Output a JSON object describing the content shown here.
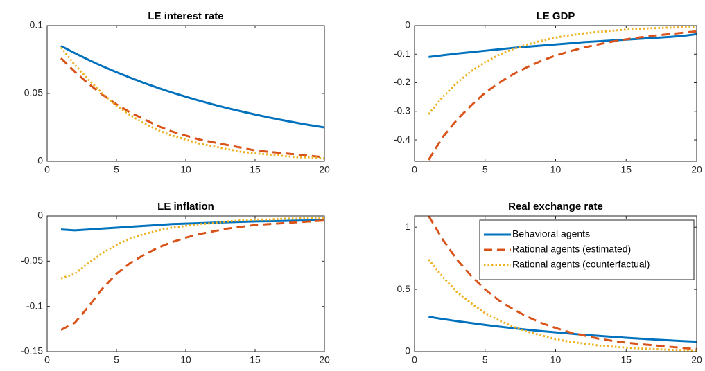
{
  "chart_data": [
    {
      "type": "line",
      "title": "LE interest rate",
      "x": [
        1,
        2,
        3,
        4,
        5,
        6,
        7,
        8,
        9,
        10,
        11,
        12,
        13,
        14,
        15,
        16,
        17,
        18,
        19,
        20
      ],
      "xlim": [
        0,
        20
      ],
      "xticks": [
        0,
        5,
        10,
        15,
        20
      ],
      "ylim": [
        0,
        0.1
      ],
      "yticks": [
        0,
        0.05,
        0.1
      ],
      "series": [
        {
          "color": "#0072BD",
          "style": "solid",
          "values": [
            0.085,
            0.0797,
            0.0747,
            0.07,
            0.0657,
            0.0616,
            0.0577,
            0.0541,
            0.0507,
            0.0476,
            0.0446,
            0.0418,
            0.0392,
            0.0368,
            0.0345,
            0.0323,
            0.0303,
            0.0284,
            0.0266,
            0.025
          ]
        },
        {
          "color": "#D95319",
          "style": "dashed",
          "values": [
            0.076,
            0.066,
            0.057,
            0.049,
            0.042,
            0.036,
            0.031,
            0.026,
            0.022,
            0.019,
            0.016,
            0.014,
            0.012,
            0.01,
            0.008,
            0.007,
            0.006,
            0.005,
            0.004,
            0.003
          ]
        },
        {
          "color": "#EDB120",
          "style": "dotted",
          "values": [
            0.084,
            0.071,
            0.06,
            0.05,
            0.041,
            0.034,
            0.028,
            0.023,
            0.019,
            0.016,
            0.013,
            0.011,
            0.009,
            0.007,
            0.006,
            0.005,
            0.004,
            0.003,
            0.003,
            0.002
          ]
        }
      ]
    },
    {
      "type": "line",
      "title": "LE GDP",
      "x": [
        1,
        2,
        3,
        4,
        5,
        6,
        7,
        8,
        9,
        10,
        11,
        12,
        13,
        14,
        15,
        16,
        17,
        18,
        19,
        20
      ],
      "xlim": [
        0,
        20
      ],
      "xticks": [
        0,
        5,
        10,
        15,
        20
      ],
      "ylim": [
        -0.475,
        0
      ],
      "yticks": [
        -0.4,
        -0.3,
        -0.2,
        -0.1,
        0
      ],
      "series": [
        {
          "color": "#0072BD",
          "style": "solid",
          "values": [
            -0.11,
            -0.104,
            -0.098,
            -0.093,
            -0.088,
            -0.083,
            -0.078,
            -0.074,
            -0.07,
            -0.066,
            -0.062,
            -0.058,
            -0.055,
            -0.052,
            -0.049,
            -0.046,
            -0.043,
            -0.04,
            -0.036,
            -0.03
          ]
        },
        {
          "color": "#D95319",
          "style": "dashed",
          "values": [
            -0.47,
            -0.39,
            -0.33,
            -0.28,
            -0.235,
            -0.2,
            -0.17,
            -0.145,
            -0.123,
            -0.105,
            -0.09,
            -0.077,
            -0.066,
            -0.056,
            -0.048,
            -0.041,
            -0.035,
            -0.03,
            -0.025,
            -0.02
          ]
        },
        {
          "color": "#EDB120",
          "style": "dotted",
          "values": [
            -0.31,
            -0.25,
            -0.2,
            -0.16,
            -0.128,
            -0.102,
            -0.082,
            -0.066,
            -0.053,
            -0.042,
            -0.034,
            -0.027,
            -0.022,
            -0.018,
            -0.014,
            -0.011,
            -0.009,
            -0.007,
            -0.006,
            -0.005
          ]
        }
      ]
    },
    {
      "type": "line",
      "title": "LE inflation",
      "x": [
        1,
        2,
        3,
        4,
        5,
        6,
        7,
        8,
        9,
        10,
        11,
        12,
        13,
        14,
        15,
        16,
        17,
        18,
        19,
        20
      ],
      "xlim": [
        0,
        20
      ],
      "xticks": [
        0,
        5,
        10,
        15,
        20
      ],
      "ylim": [
        -0.15,
        0
      ],
      "yticks": [
        -0.15,
        -0.1,
        -0.05,
        0
      ],
      "series": [
        {
          "color": "#0072BD",
          "style": "solid",
          "values": [
            -0.015,
            -0.016,
            -0.015,
            -0.014,
            -0.013,
            -0.012,
            -0.011,
            -0.01,
            -0.009,
            -0.0085,
            -0.008,
            -0.0075,
            -0.007,
            -0.0065,
            -0.006,
            -0.0058,
            -0.0055,
            -0.0052,
            -0.005,
            -0.005
          ]
        },
        {
          "color": "#D95319",
          "style": "dashed",
          "values": [
            -0.126,
            -0.118,
            -0.1,
            -0.08,
            -0.064,
            -0.052,
            -0.043,
            -0.035,
            -0.029,
            -0.024,
            -0.02,
            -0.017,
            -0.014,
            -0.012,
            -0.01,
            -0.009,
            -0.008,
            -0.007,
            -0.006,
            -0.005
          ]
        },
        {
          "color": "#EDB120",
          "style": "dotted",
          "values": [
            -0.069,
            -0.064,
            -0.052,
            -0.041,
            -0.032,
            -0.025,
            -0.02,
            -0.016,
            -0.013,
            -0.011,
            -0.009,
            -0.008,
            -0.006,
            -0.005,
            -0.004,
            -0.004,
            -0.003,
            -0.003,
            -0.002,
            -0.002
          ]
        }
      ]
    },
    {
      "type": "line",
      "title": "Real exchange rate",
      "x": [
        1,
        2,
        3,
        4,
        5,
        6,
        7,
        8,
        9,
        10,
        11,
        12,
        13,
        14,
        15,
        16,
        17,
        18,
        19,
        20
      ],
      "xlim": [
        0,
        20
      ],
      "xticks": [
        0,
        5,
        10,
        15,
        20
      ],
      "ylim": [
        0,
        1.09
      ],
      "yticks": [
        0,
        0.5,
        1
      ],
      "legend": "upper right",
      "series": [
        {
          "name": "Behavioral agents",
          "color": "#0072BD",
          "style": "solid",
          "values": [
            0.28,
            0.262,
            0.245,
            0.23,
            0.215,
            0.201,
            0.188,
            0.176,
            0.165,
            0.155,
            0.145,
            0.135,
            0.127,
            0.119,
            0.111,
            0.104,
            0.097,
            0.091,
            0.085,
            0.08
          ]
        },
        {
          "name": "Rational agents (estimated)",
          "color": "#D95319",
          "style": "dashed",
          "values": [
            1.09,
            0.9,
            0.74,
            0.61,
            0.5,
            0.41,
            0.34,
            0.28,
            0.23,
            0.19,
            0.155,
            0.13,
            0.105,
            0.087,
            0.072,
            0.06,
            0.05,
            0.04,
            0.03,
            0.02
          ]
        },
        {
          "name": "Rational agents (counterfactual)",
          "color": "#EDB120",
          "style": "dotted",
          "values": [
            0.74,
            0.6,
            0.48,
            0.39,
            0.31,
            0.25,
            0.2,
            0.16,
            0.13,
            0.1,
            0.08,
            0.065,
            0.05,
            0.04,
            0.032,
            0.025,
            0.02,
            0.015,
            0.012,
            0.01
          ]
        }
      ]
    }
  ]
}
